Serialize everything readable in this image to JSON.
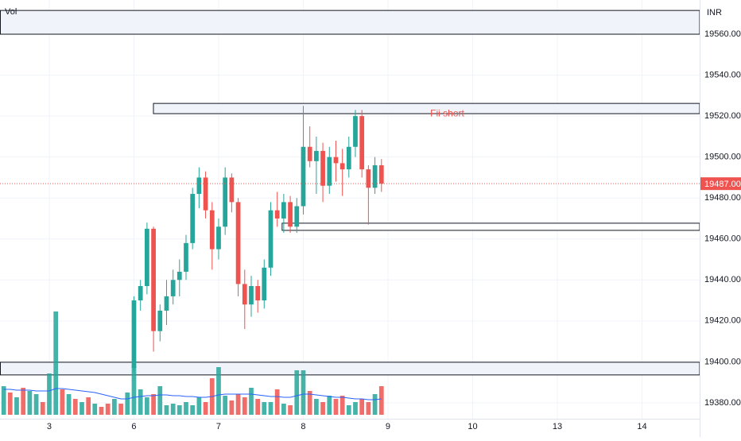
{
  "chart_data": {
    "type": "candlestick",
    "pane_label": "Vol",
    "currency": "INR",
    "xlim": [
      -0.582,
      7.681
    ],
    "ylim": [
      19372.2,
      19576.7
    ],
    "xticks": [
      {
        "value": 0,
        "label": "3"
      },
      {
        "value": 1,
        "label": "6"
      },
      {
        "value": 2,
        "label": "7"
      },
      {
        "value": 3,
        "label": "8"
      },
      {
        "value": 4,
        "label": "9"
      },
      {
        "value": 5,
        "label": "10"
      },
      {
        "value": 6,
        "label": "13"
      },
      {
        "value": 7,
        "label": "14"
      }
    ],
    "yticks": [
      {
        "value": 19380,
        "label": "19380.00"
      },
      {
        "value": 19400,
        "label": "19400.00"
      },
      {
        "value": 19420,
        "label": "19420.00"
      },
      {
        "value": 19440,
        "label": "19440.00"
      },
      {
        "value": 19460,
        "label": "19460.00"
      },
      {
        "value": 19480,
        "label": "19480.00"
      },
      {
        "value": 19500,
        "label": "19500.00"
      },
      {
        "value": 19520,
        "label": "19520.00"
      },
      {
        "value": 19540,
        "label": "19540.00"
      },
      {
        "value": 19560,
        "label": "19560.00"
      }
    ],
    "grid": true,
    "up_color": "#26a69a",
    "down_color": "#ef5350",
    "last_price": {
      "value": 19487,
      "label": "19487.00",
      "color": "#ef5350"
    },
    "x": [
      1.0,
      1.077,
      1.154,
      1.231,
      1.308,
      1.385,
      1.462,
      1.538,
      1.615,
      1.692,
      1.769,
      1.846,
      1.923,
      2.0,
      2.077,
      2.154,
      2.231,
      2.308,
      2.385,
      2.462,
      2.538,
      2.615,
      2.692,
      2.769,
      2.846,
      2.923,
      3.0,
      3.077,
      3.154,
      3.231,
      3.308,
      3.385,
      3.462,
      3.538,
      3.615,
      3.692,
      3.769,
      3.846,
      3.923
    ],
    "open": [
      19397,
      19430,
      19437,
      19465,
      19415,
      19425,
      19432,
      19440,
      19444,
      19458,
      19482,
      19490,
      19474,
      19455,
      19466,
      19490,
      19478,
      19438,
      19428,
      19437,
      19430,
      19446,
      19474,
      19470,
      19478,
      19466,
      19476,
      19505,
      19498,
      19503,
      19486,
      19500,
      19497,
      19494,
      19505,
      19520,
      19494,
      19485,
      19496
    ],
    "high": [
      19432,
      19440,
      19468,
      19466,
      19428,
      19440,
      19445,
      19450,
      19462,
      19485,
      19495,
      19493,
      19478,
      19470,
      19495,
      19492,
      19480,
      19445,
      19442,
      19440,
      19450,
      19478,
      19483,
      19482,
      19481,
      19480,
      19525,
      19515,
      19510,
      19507,
      19505,
      19508,
      19504,
      19510,
      19523,
      19523,
      19496,
      19500,
      19499
    ],
    "low": [
      19395,
      19425,
      19433,
      19405,
      19410,
      19418,
      19428,
      19432,
      19440,
      19455,
      19475,
      19470,
      19445,
      19450,
      19462,
      19473,
      19432,
      19416,
      19422,
      19424,
      19426,
      19442,
      19466,
      19463,
      19463,
      19463,
      19472,
      19495,
      19482,
      19478,
      19482,
      19488,
      19481,
      19490,
      19500,
      19490,
      19467,
      19482,
      19483
    ],
    "close": [
      19430,
      19437,
      19465,
      19415,
      19425,
      19432,
      19440,
      19444,
      19458,
      19482,
      19490,
      19474,
      19455,
      19466,
      19490,
      19478,
      19438,
      19428,
      19437,
      19430,
      19446,
      19474,
      19470,
      19478,
      19466,
      19476,
      19505,
      19498,
      19503,
      19486,
      19500,
      19497,
      19494,
      19505,
      19520,
      19494,
      19485,
      19496,
      19487
    ],
    "volume_ylim": [
      0,
      200
    ],
    "volume": {
      "x": [
        -0.538,
        -0.462,
        -0.385,
        -0.308,
        -0.231,
        -0.154,
        -0.077,
        0,
        0.077,
        0.154,
        0.231,
        0.308,
        0.385,
        0.462,
        0.538,
        0.615,
        0.692,
        0.769,
        0.846,
        0.923,
        1.0,
        1.077,
        1.154,
        1.231,
        1.308,
        1.385,
        1.462,
        1.538,
        1.615,
        1.692,
        1.769,
        1.846,
        1.923,
        2.0,
        2.077,
        2.154,
        2.231,
        2.308,
        2.385,
        2.462,
        2.538,
        2.615,
        2.692,
        2.769,
        2.846,
        2.923,
        3.0,
        3.077,
        3.154,
        3.231,
        3.308,
        3.385,
        3.462,
        3.538,
        3.615,
        3.692,
        3.769,
        3.846,
        3.923
      ],
      "values": [
        36,
        28,
        22,
        34,
        30,
        26,
        16,
        52,
        130,
        32,
        26,
        20,
        16,
        22,
        14,
        10,
        14,
        20,
        14,
        28,
        62,
        32,
        22,
        26,
        36,
        12,
        14,
        12,
        16,
        12,
        22,
        16,
        46,
        60,
        24,
        18,
        26,
        22,
        34,
        20,
        16,
        16,
        32,
        14,
        12,
        56,
        56,
        30,
        20,
        16,
        24,
        20,
        24,
        12,
        16,
        20,
        16,
        26,
        36
      ],
      "rising": [
        true,
        false,
        true,
        false,
        true,
        true,
        false,
        true,
        true,
        false,
        true,
        false,
        true,
        false,
        true,
        false,
        false,
        true,
        false,
        true,
        true,
        true,
        true,
        false,
        true,
        true,
        true,
        true,
        true,
        true,
        true,
        false,
        false,
        true,
        true,
        false,
        false,
        false,
        true,
        false,
        true,
        true,
        false,
        true,
        false,
        true,
        true,
        false,
        true,
        false,
        true,
        false,
        false,
        true,
        true,
        false,
        false,
        true,
        false
      ],
      "ma": [
        32,
        32,
        31,
        31,
        31,
        30,
        30,
        30,
        33,
        33,
        32,
        31,
        30,
        29,
        28,
        26,
        24,
        22,
        20,
        20,
        22,
        23,
        24,
        24,
        25,
        25,
        24,
        24,
        23,
        23,
        22,
        22,
        23,
        25,
        26,
        26,
        26,
        26,
        26,
        25,
        24,
        23,
        23,
        22,
        22,
        24,
        26,
        26,
        25,
        24,
        23,
        22,
        22,
        21,
        20,
        20,
        19,
        19,
        20
      ],
      "ma_color": "#2962ff"
    },
    "zones": [
      {
        "x0": -0.582,
        "top": 19571.6,
        "bottom": 19560,
        "fill": "#f0f3fa"
      },
      {
        "x0": 1.23,
        "top": 19526.2,
        "bottom": 19521.2,
        "fill": "#f0f3fa"
      },
      {
        "x0": 2.75,
        "top": 19467.7,
        "bottom": 19464.2,
        "fill": "#ffffff"
      },
      {
        "x0": -0.582,
        "top": 19399.8,
        "bottom": 19393.6,
        "fill": "#f0f3fa"
      }
    ],
    "annotations": [
      {
        "text": "Fii short",
        "x": 4.7,
        "y": 19521,
        "color": "#ef5350"
      }
    ]
  }
}
